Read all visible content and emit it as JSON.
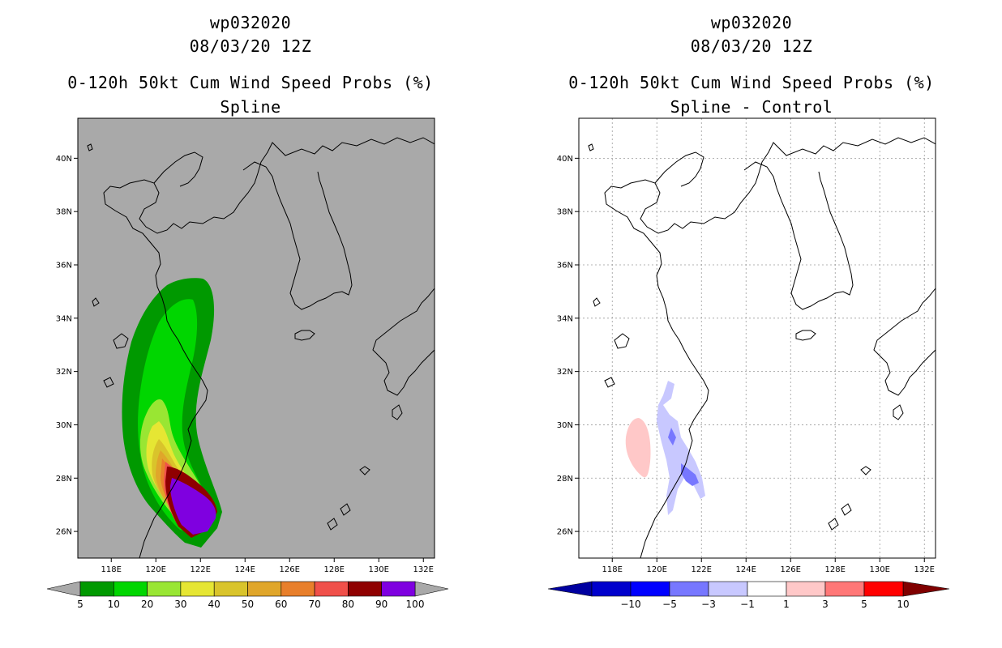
{
  "left_panel": {
    "title_line1": "wp032020",
    "title_line2": "08/03/20 12Z",
    "title_line3": "0-120h 50kt Cum Wind Speed Probs (%)",
    "title_line4": "Spline",
    "background_color": "#a9a9a9"
  },
  "right_panel": {
    "title_line1": "wp032020",
    "title_line2": "08/03/20 12Z",
    "title_line3": "0-120h 50kt Cum Wind Speed Probs (%)",
    "title_line4": "Spline - Control",
    "background_color": "#ffffff"
  },
  "chart_data": [
    {
      "type": "heatmap",
      "title": "0-120h 50kt Cum Wind Speed Probs (%) — Spline",
      "map_extent": {
        "lon": [
          116.5,
          132.5
        ],
        "lat": [
          25,
          41.5
        ]
      },
      "x_ticks": [
        "118E",
        "120E",
        "122E",
        "124E",
        "126E",
        "128E",
        "130E",
        "132E"
      ],
      "y_ticks": [
        "26N",
        "28N",
        "30N",
        "32N",
        "34N",
        "36N",
        "38N",
        "40N"
      ],
      "grid": false,
      "colorbar": {
        "labels": [
          "5",
          "10",
          "20",
          "30",
          "40",
          "50",
          "60",
          "70",
          "80",
          "90",
          "100"
        ],
        "colors": [
          "#009900",
          "#00d600",
          "#99e633",
          "#e6e633",
          "#d9c42b",
          "#e0a62a",
          "#e87f2b",
          "#f0504a",
          "#8f0000",
          "#7f00e0"
        ],
        "end_color": "#a9a9a9"
      }
    },
    {
      "type": "heatmap",
      "title": "0-120h 50kt Cum Wind Speed Probs (%) — Spline - Control",
      "map_extent": {
        "lon": [
          116.5,
          132.5
        ],
        "lat": [
          25,
          41.5
        ]
      },
      "x_ticks": [
        "118E",
        "120E",
        "122E",
        "124E",
        "126E",
        "128E",
        "130E",
        "132E"
      ],
      "y_ticks": [
        "26N",
        "28N",
        "30N",
        "32N",
        "34N",
        "36N",
        "38N",
        "40N"
      ],
      "grid": true,
      "colorbar": {
        "labels": [
          "-10",
          "-5",
          "-3",
          "-1",
          "1",
          "3",
          "5",
          "10"
        ],
        "colors": [
          "#0000cc",
          "#0000ff",
          "#7777ff",
          "#c8c8ff",
          "#ffffff",
          "#ffc8c8",
          "#ff7777",
          "#ff0000"
        ],
        "end_low": "#0000a0",
        "end_high": "#800000"
      }
    }
  ]
}
